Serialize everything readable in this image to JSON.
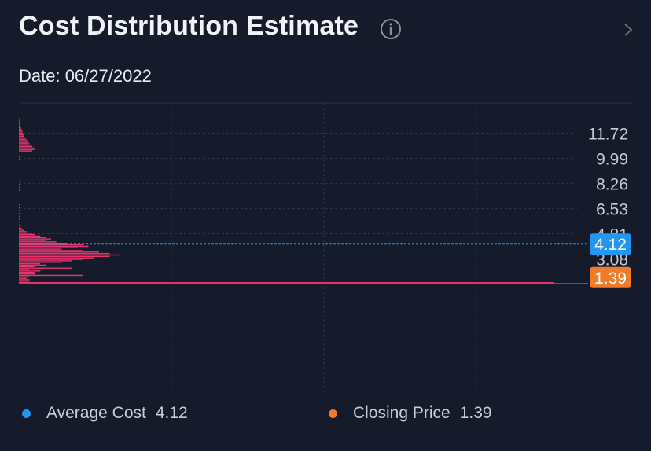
{
  "header": {
    "title": "Cost Distribution Estimate",
    "date_label": "Date: 06/27/2022"
  },
  "colors": {
    "background": "#161b2b",
    "bars": "#e8356e",
    "average": "#2196f3",
    "closing": "#f07b2a",
    "grid": "#2f3547"
  },
  "legend": {
    "average_label": "Average Cost",
    "average_value": "4.12",
    "closing_label": "Closing Price",
    "closing_value": "1.39"
  },
  "chart_data": {
    "type": "bar",
    "orientation": "horizontal",
    "title": "Cost Distribution Estimate",
    "ylim": [
      1.39,
      13.0
    ],
    "y_ticks": [
      11.72,
      9.99,
      8.26,
      6.53,
      4.81,
      3.08
    ],
    "y_tick_labels": [
      "11.72",
      "9.99",
      "8.26",
      "6.53",
      "4.81",
      "3.08"
    ],
    "grid": true,
    "average_cost": 4.12,
    "closing_price": 1.39,
    "series": [
      {
        "values": [
          [
            1.45,
            1.0
          ],
          [
            1.55,
            0.02
          ],
          [
            1.65,
            0.02
          ],
          [
            1.75,
            0.015
          ],
          [
            1.85,
            0.02
          ],
          [
            1.95,
            0.12
          ],
          [
            2.05,
            0.03
          ],
          [
            2.15,
            0.03
          ],
          [
            2.25,
            0.04
          ],
          [
            2.35,
            0.02
          ],
          [
            2.45,
            0.1
          ],
          [
            2.55,
            0.03
          ],
          [
            2.65,
            0.05
          ],
          [
            2.75,
            0.04
          ],
          [
            2.85,
            0.08
          ],
          [
            2.95,
            0.1
          ],
          [
            3.05,
            0.12
          ],
          [
            3.15,
            0.14
          ],
          [
            3.25,
            0.17
          ],
          [
            3.35,
            0.19
          ],
          [
            3.45,
            0.17
          ],
          [
            3.55,
            0.15
          ],
          [
            3.65,
            0.12
          ],
          [
            3.75,
            0.08
          ],
          [
            3.85,
            0.11
          ],
          [
            3.95,
            0.13
          ],
          [
            4.05,
            0.12
          ],
          [
            4.15,
            0.09
          ],
          [
            4.25,
            0.07
          ],
          [
            4.35,
            0.05
          ],
          [
            4.45,
            0.06
          ],
          [
            4.55,
            0.05
          ],
          [
            4.65,
            0.04
          ],
          [
            4.75,
            0.03
          ],
          [
            4.85,
            0.025
          ],
          [
            4.95,
            0.015
          ],
          [
            5.05,
            0.01
          ],
          [
            5.2,
            0.005
          ],
          [
            5.4,
            0.003
          ],
          [
            5.6,
            0.002
          ],
          [
            5.8,
            0.002
          ],
          [
            6.0,
            0.002
          ],
          [
            6.2,
            0.002
          ],
          [
            6.4,
            0.002
          ],
          [
            6.6,
            0.002
          ],
          [
            6.8,
            0.002
          ],
          [
            7.8,
            0.003
          ],
          [
            8.0,
            0.003
          ],
          [
            8.2,
            0.003
          ],
          [
            8.4,
            0.003
          ],
          [
            9.9,
            0.002
          ],
          [
            10.1,
            0.002
          ],
          [
            10.5,
            0.025
          ],
          [
            10.6,
            0.03
          ],
          [
            10.7,
            0.028
          ],
          [
            10.8,
            0.025
          ],
          [
            10.9,
            0.022
          ],
          [
            11.0,
            0.02
          ],
          [
            11.1,
            0.018
          ],
          [
            11.2,
            0.016
          ],
          [
            11.3,
            0.014
          ],
          [
            11.4,
            0.012
          ],
          [
            11.5,
            0.01
          ],
          [
            11.6,
            0.009
          ],
          [
            11.7,
            0.008
          ],
          [
            11.8,
            0.007
          ],
          [
            11.9,
            0.006
          ],
          [
            12.0,
            0.005
          ],
          [
            12.1,
            0.004
          ],
          [
            12.2,
            0.003
          ],
          [
            12.3,
            0.003
          ],
          [
            12.4,
            0.002
          ],
          [
            12.5,
            0.002
          ],
          [
            12.6,
            0.002
          ],
          [
            12.7,
            0.002
          ]
        ]
      }
    ]
  }
}
